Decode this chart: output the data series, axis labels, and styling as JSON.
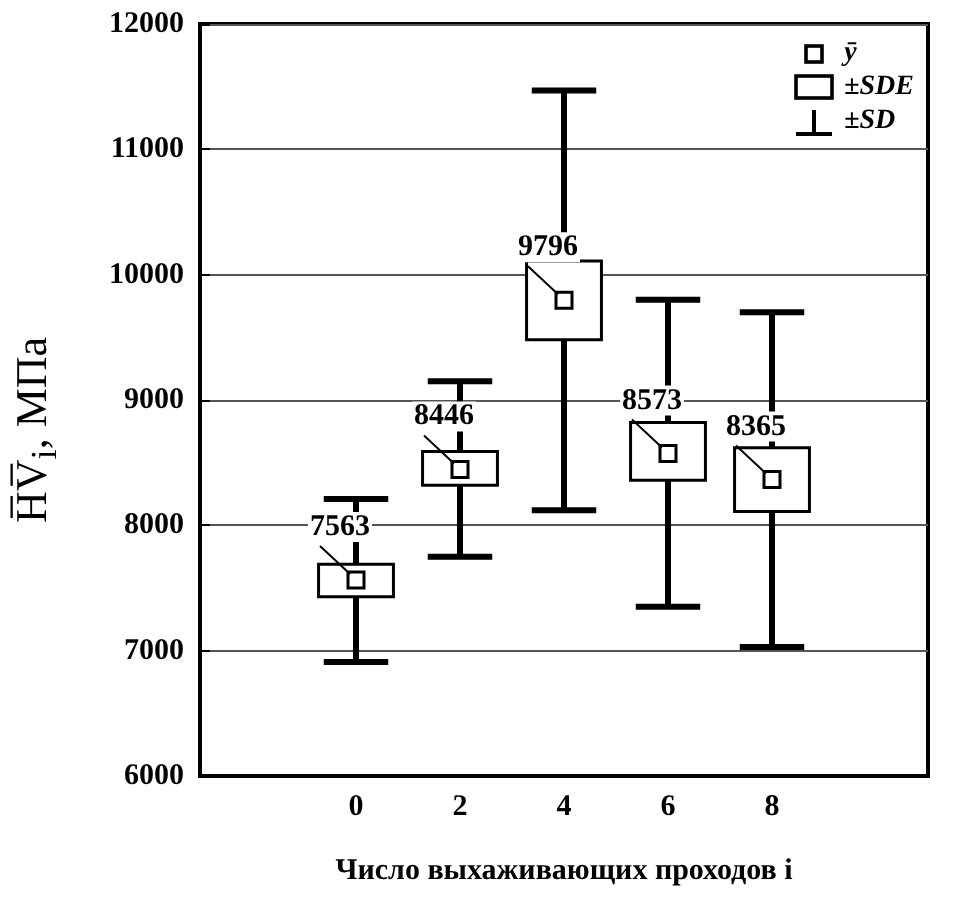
{
  "chart_data": {
    "type": "box",
    "xlabel": "Число выхаживающих проходов i",
    "ylabel": "H̅V̅$_{i}$, МПа",
    "categories": [
      null,
      "0",
      "2",
      "4",
      "6",
      "8",
      null
    ],
    "color": "#000000",
    "boxes": [
      null,
      {
        "low": 6910,
        "q1": 7430,
        "q3": 7690,
        "high": 8210,
        "mean": 7563
      },
      {
        "low": 7750,
        "q1": 8320,
        "q3": 8590,
        "high": 9150,
        "mean": 8446
      },
      {
        "low": 8120,
        "q1": 9480,
        "q3": 10110,
        "high": 11470,
        "mean": 9796
      },
      {
        "low": 7350,
        "q1": 8360,
        "q3": 8820,
        "high": 9800,
        "mean": 8573
      },
      {
        "low": 7030,
        "q1": 8110,
        "q3": 8620,
        "high": 9700,
        "mean": 8365
      },
      null
    ],
    "annotations": [
      {
        "text": "7563",
        "x": "0",
        "y": 7563
      },
      {
        "text": "8446",
        "x": "2",
        "y": 8446
      },
      {
        "text": "9796",
        "x": "4",
        "y": 9796
      },
      {
        "text": "8573",
        "x": "6",
        "y": 8573
      },
      {
        "text": "8365",
        "x": "8",
        "y": 8365
      },
      "ȳ",
      "±SDE",
      "±SD"
    ],
    "ylim": [
      6000,
      12000
    ],
    "yticks": [
      6000,
      7000,
      8000,
      9000,
      10000,
      11000,
      12000
    ],
    "grid": "y"
  }
}
